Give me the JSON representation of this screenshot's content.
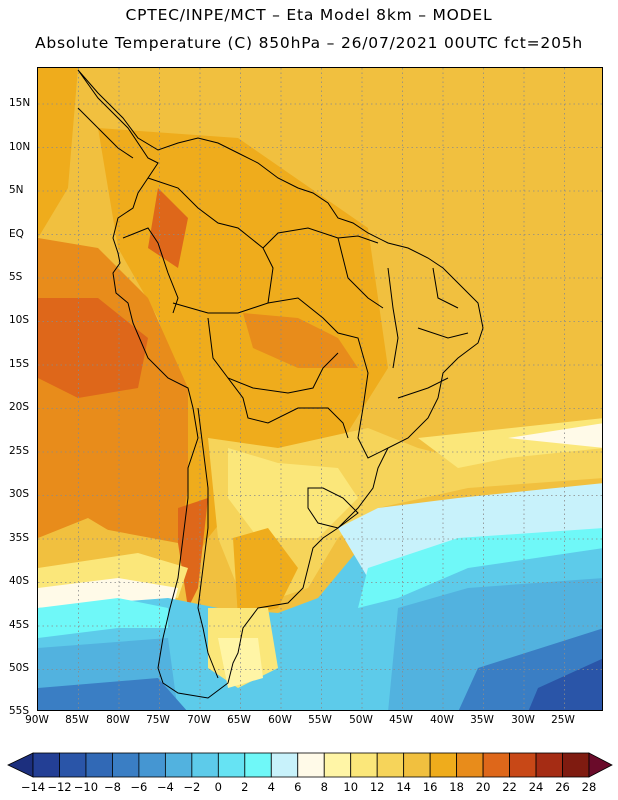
{
  "header": {
    "line1": "CPTEC/INPE/MCT –  Eta Model 8km – MODEL",
    "line2": "Absolute Temperature (C) 850hPa – 26/07/2021 00UTC fct=205h"
  },
  "map": {
    "lat_labels": [
      "15N",
      "10N",
      "5N",
      "EQ",
      "5S",
      "10S",
      "15S",
      "20S",
      "25S",
      "30S",
      "35S",
      "40S",
      "45S",
      "50S",
      "55S"
    ],
    "lon_labels": [
      "90W",
      "85W",
      "80W",
      "75W",
      "70W",
      "65W",
      "60W",
      "55W",
      "50W",
      "45W",
      "40W",
      "35W",
      "30W",
      "25W"
    ],
    "regions": [
      {
        "name": "northern-atlantic-warm",
        "value": 16
      },
      {
        "name": "continent-tropics",
        "value": 18
      },
      {
        "name": "peru-offshore-hot",
        "value": 22
      },
      {
        "name": "patagonia-cold",
        "value": 4
      },
      {
        "name": "south-atlantic-cold",
        "value": 0
      }
    ]
  },
  "legend": {
    "unit": "C",
    "levels": [
      "-14",
      "-12",
      "-10",
      "-8",
      "-6",
      "-4",
      "-2",
      "0",
      "2",
      "4",
      "6",
      "8",
      "10",
      "12",
      "14",
      "16",
      "18",
      "20",
      "22",
      "24",
      "26",
      "28"
    ],
    "colors": [
      "#1c2f7e",
      "#233f95",
      "#2a55a8",
      "#3169b6",
      "#3a7ec4",
      "#4596d2",
      "#52b2df",
      "#5dcbea",
      "#66e3f3",
      "#6ff8f8",
      "#c8f2fb",
      "#fffae8",
      "#fff5a6",
      "#fbe77a",
      "#f6d45a",
      "#f1c03f",
      "#efac1c",
      "#e88c1b",
      "#de671a",
      "#c84817",
      "#a52c14",
      "#7f1b10",
      "#6a0b2a"
    ]
  }
}
